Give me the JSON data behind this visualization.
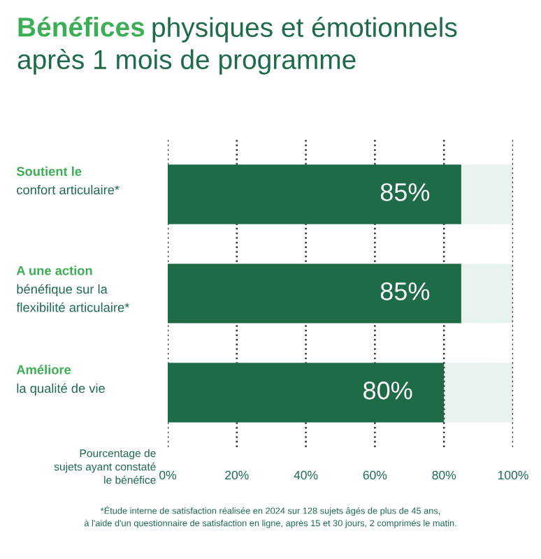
{
  "chart_data": {
    "type": "bar",
    "orientation": "horizontal",
    "stacked": true,
    "title": "Bénéfices physiques et émotionnels\naprès 1 mois de programme",
    "categories": [
      "Soutient le\nconfort articulaire*",
      "A une action\nbénéfique sur la\nflexibilité articulaire*",
      "Améliore\nla qualité de vie"
    ],
    "series": [
      {
        "color": "#1e6b48",
        "values": [
          85,
          85,
          80
        ],
        "value_labels": [
          "85%",
          "85%",
          "80%"
        ]
      },
      {
        "color": "#e8f3ee",
        "values": [
          15,
          15,
          20
        ],
        "value_labels": [
          null,
          null,
          null
        ]
      }
    ],
    "xlabel": "Pourcentage de\nsujets ayant constaté\nle bénéfice",
    "xlim": [
      0,
      100
    ],
    "xticks": [
      {
        "value": 0,
        "label": "0%"
      },
      {
        "value": 20,
        "label": "20%"
      },
      {
        "value": 40,
        "label": "40%"
      },
      {
        "value": 60,
        "label": "60%"
      },
      {
        "value": 80,
        "label": "80%"
      },
      {
        "value": 100,
        "label": "100%"
      }
    ],
    "grid": "x",
    "line_style": "dotted",
    "annotations": [
      "*Étude interne de satisfaction réalisée en 2024 sur 128 sujets âgés de plus de 45 ans,\nà l'aide d'un questionnaire de satisfaction en ligne, après 15 et 30 jours, 2 comprimés le matin."
    ]
  }
}
